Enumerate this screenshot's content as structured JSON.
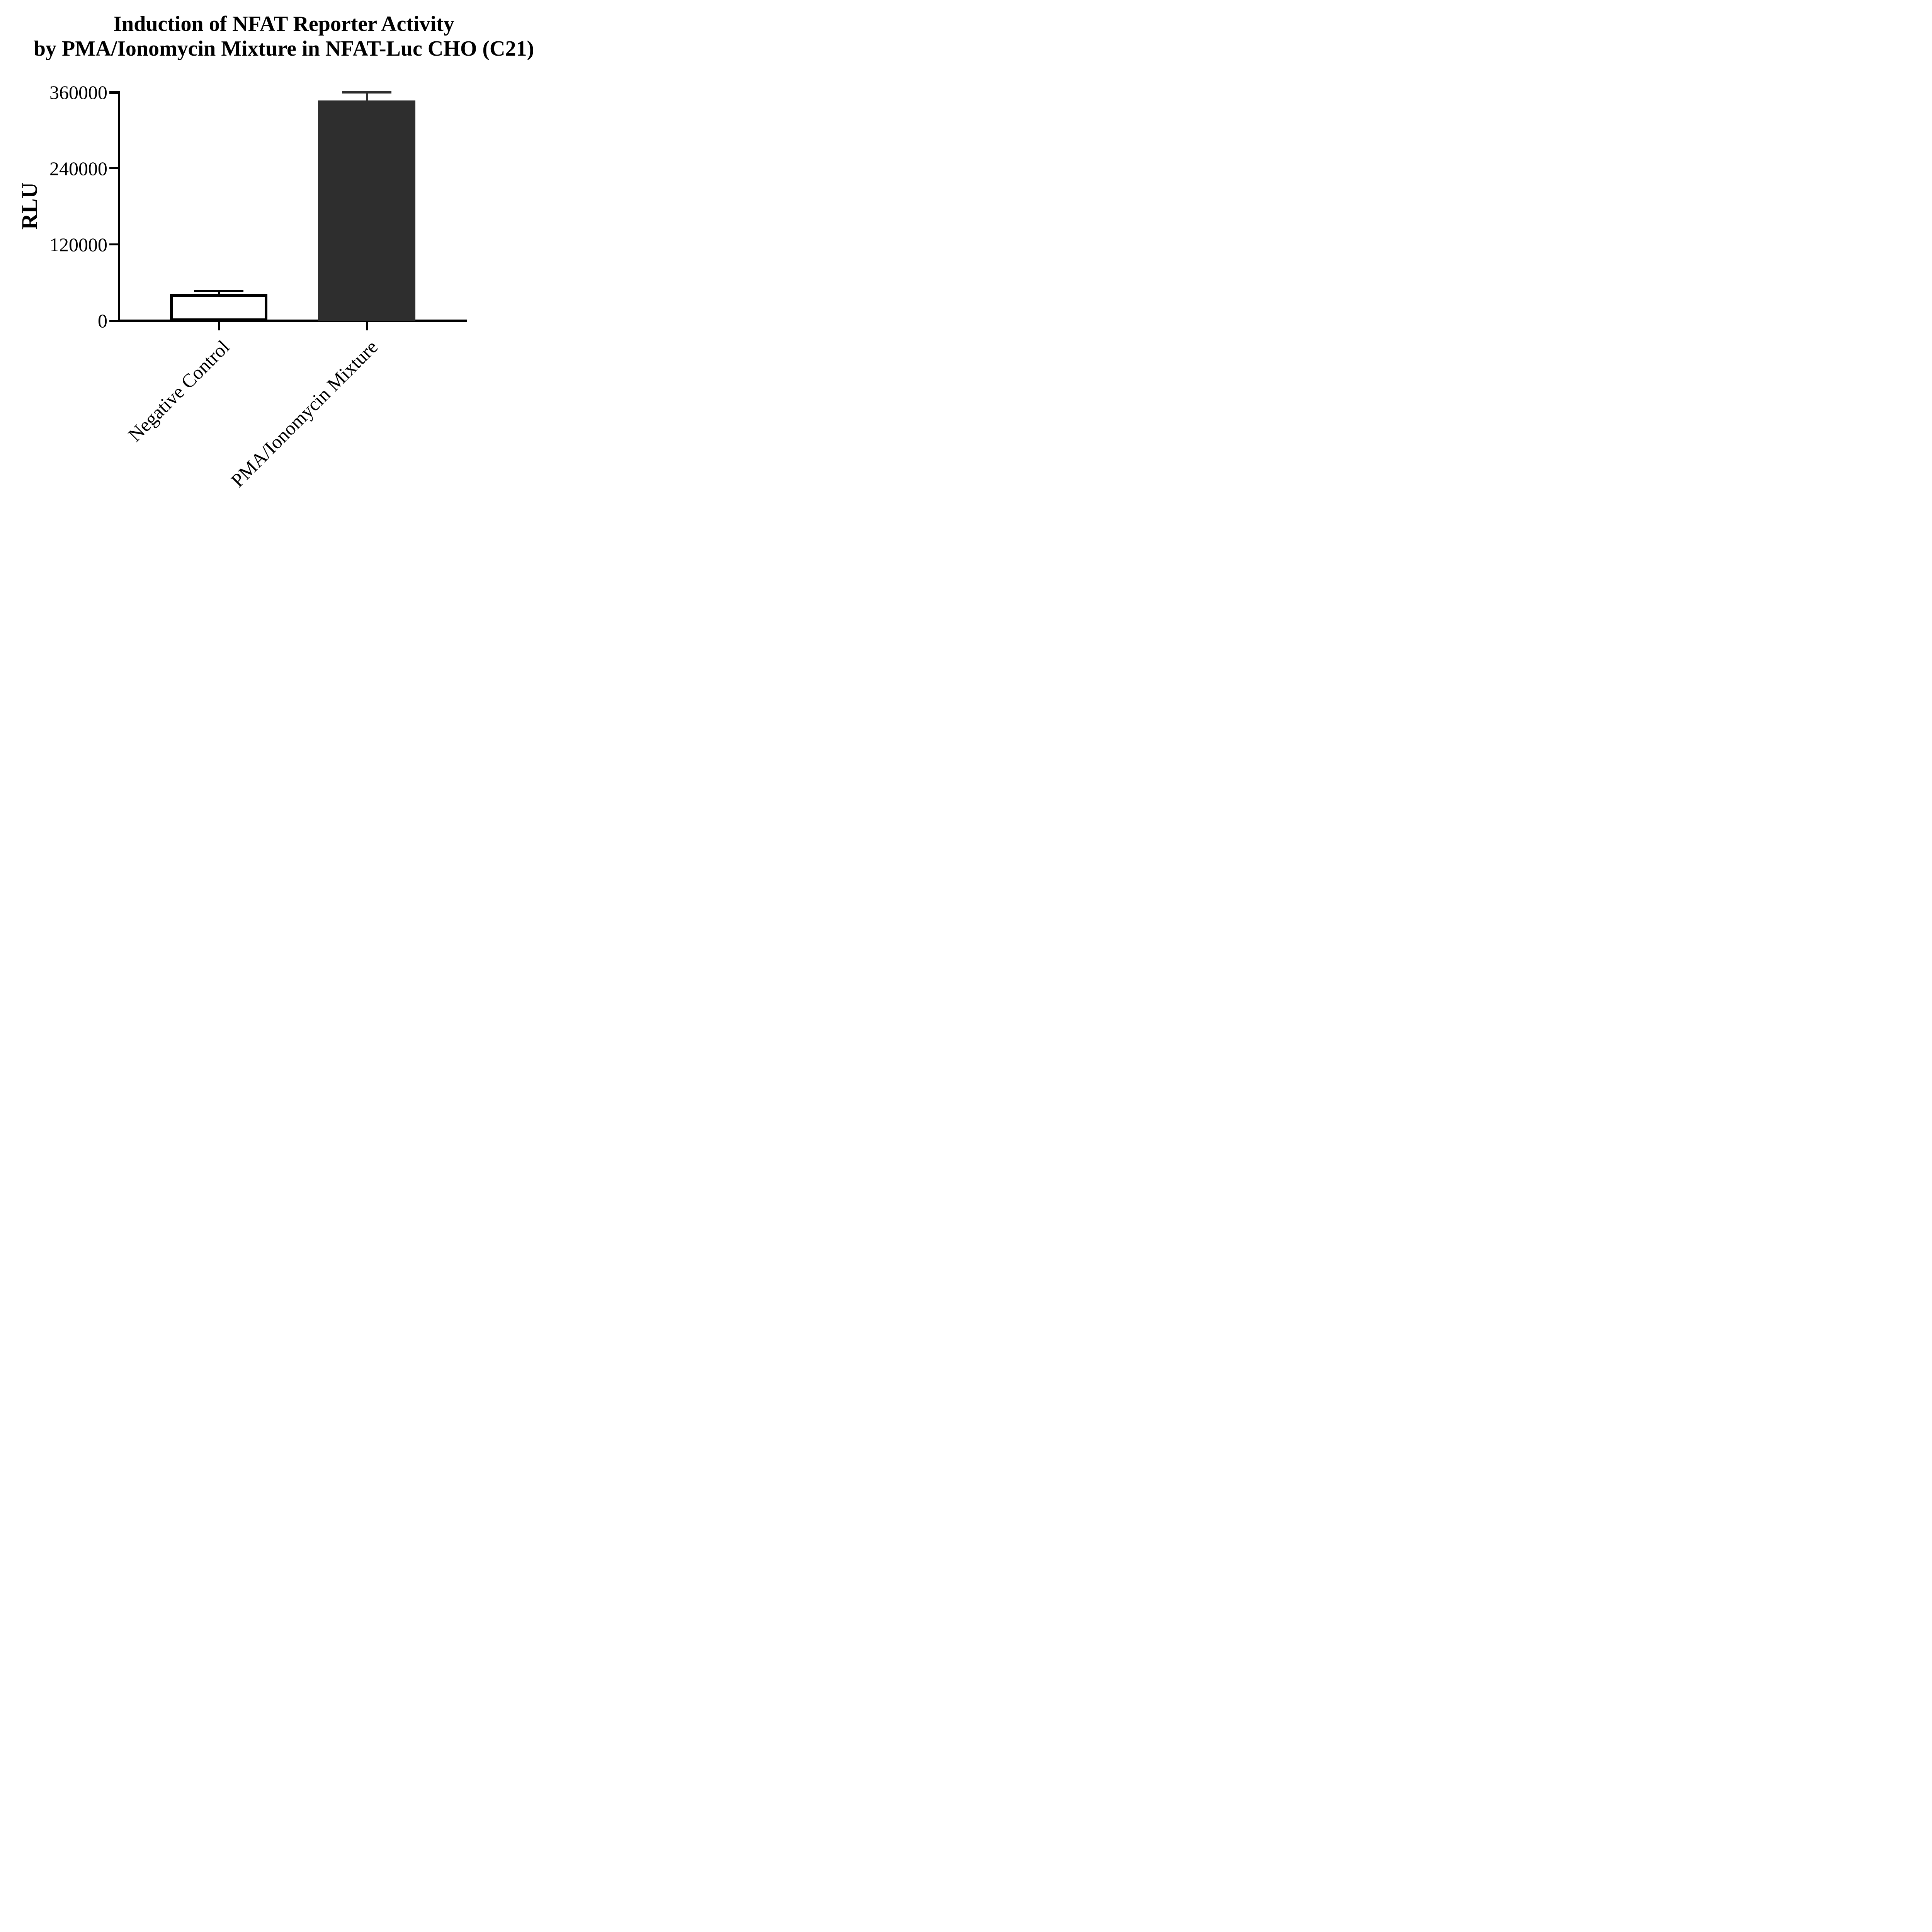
{
  "figure": {
    "title_line1": "Induction of NFAT Reporter Activity",
    "title_line2": "by PMA/Ionomycin Mixture in NFAT-Luc CHO (C21)"
  },
  "chart_data": {
    "type": "bar",
    "title": "Induction of NFAT Reporter Activity by PMA/Ionomycin Mixture in NFAT-Luc CHO (C21)",
    "xlabel": "",
    "ylabel": "RLU",
    "categories": [
      "Negative Control",
      "PMA/Ionomycin Mixture"
    ],
    "values": [
      42000,
      347000
    ],
    "errors_plus": [
      5000,
      13000
    ],
    "error_bar_style": "SD, upper only, capped",
    "ylim": [
      0,
      360000
    ],
    "yticks": [
      0,
      120000,
      240000,
      360000
    ],
    "ytick_labels": [
      "0",
      "120000",
      "240000",
      "360000"
    ],
    "bar_fill_colors": [
      "#ffffff",
      "#2e2e2e"
    ],
    "bar_border_colors": [
      "#000000",
      "#2e2e2e"
    ],
    "error_colors": [
      "#000000",
      "#2e2e2e"
    ],
    "axis_color": "#000000",
    "grid": false,
    "legend": null,
    "xtick_label_rotation_deg": 45
  }
}
